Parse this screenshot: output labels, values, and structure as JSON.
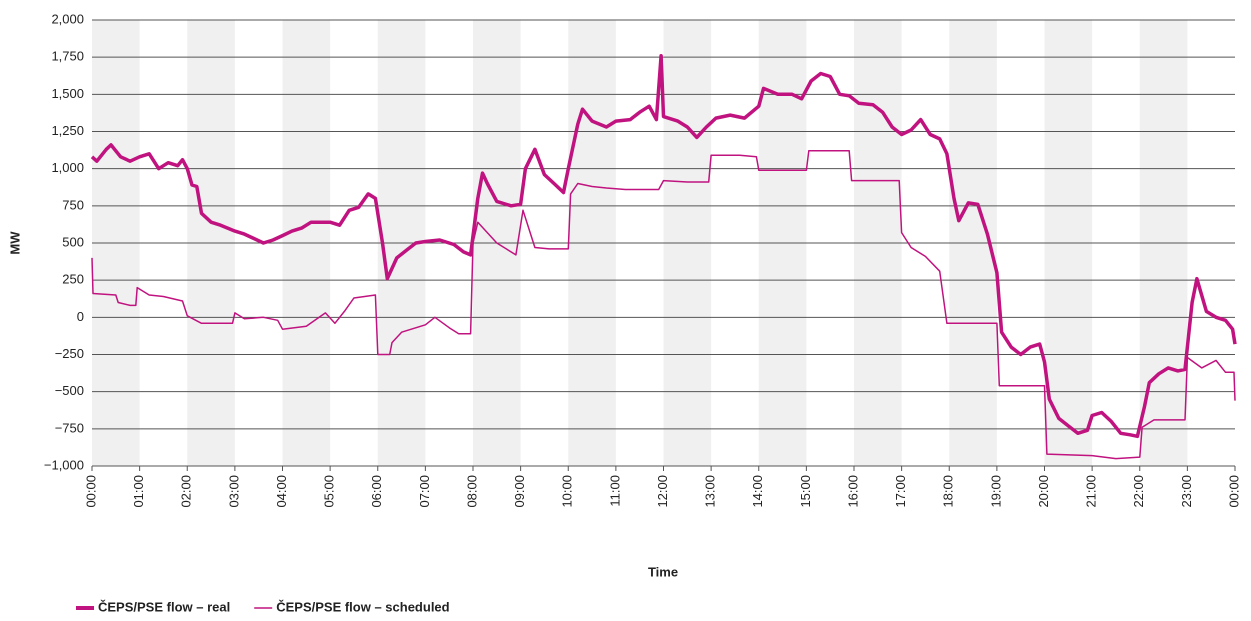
{
  "chart_data": {
    "type": "line",
    "ylabel": "MW",
    "xlabel": "Time",
    "xlim": [
      0,
      24
    ],
    "ylim": [
      -1000,
      2000
    ],
    "grid": true,
    "legend": "bottom-left",
    "yticks": [
      {
        "value": -1000,
        "label": "−1,000"
      },
      {
        "value": -750,
        "label": "−750"
      },
      {
        "value": -500,
        "label": "−500"
      },
      {
        "value": -250,
        "label": "−250"
      },
      0,
      250,
      500,
      750,
      {
        "value": 1000,
        "label": "1,000"
      },
      {
        "value": 1250,
        "label": "1,250"
      },
      {
        "value": 1500,
        "label": "1,500"
      },
      {
        "value": 1750,
        "label": "1,750"
      },
      {
        "value": 2000,
        "label": "2,000"
      }
    ],
    "xticks": [
      {
        "value": 0,
        "label": "00:00"
      },
      {
        "value": 1,
        "label": "01:00"
      },
      {
        "value": 2,
        "label": "02:00"
      },
      {
        "value": 3,
        "label": "03:00"
      },
      {
        "value": 4,
        "label": "04:00"
      },
      {
        "value": 5,
        "label": "05:00"
      },
      {
        "value": 6,
        "label": "06:00"
      },
      {
        "value": 7,
        "label": "07:00"
      },
      {
        "value": 8,
        "label": "08:00"
      },
      {
        "value": 9,
        "label": "09:00"
      },
      {
        "value": 10,
        "label": "10:00"
      },
      {
        "value": 11,
        "label": "11:00"
      },
      {
        "value": 12,
        "label": "12:00"
      },
      {
        "value": 13,
        "label": "13:00"
      },
      {
        "value": 14,
        "label": "14:00"
      },
      {
        "value": 15,
        "label": "15:00"
      },
      {
        "value": 16,
        "label": "16:00"
      },
      {
        "value": 17,
        "label": "17:00"
      },
      {
        "value": 18,
        "label": "18:00"
      },
      {
        "value": 19,
        "label": "19:00"
      },
      {
        "value": 20,
        "label": "20:00"
      },
      {
        "value": 21,
        "label": "21:00"
      },
      {
        "value": 22,
        "label": "22:00"
      },
      {
        "value": 23,
        "label": "23:00"
      },
      {
        "value": 24,
        "label": "00:00"
      }
    ],
    "series": [
      {
        "name": "ČEPS/PSE flow – real",
        "color": "#c0137f",
        "x": [
          0,
          0.1,
          0.3,
          0.4,
          0.6,
          0.8,
          1.0,
          1.2,
          1.4,
          1.6,
          1.8,
          1.9,
          2.0,
          2.1,
          2.2,
          2.3,
          2.5,
          2.7,
          3.0,
          3.2,
          3.4,
          3.6,
          3.8,
          4.0,
          4.2,
          4.4,
          4.6,
          4.8,
          5.0,
          5.2,
          5.4,
          5.6,
          5.8,
          5.95,
          6.1,
          6.2,
          6.4,
          6.6,
          6.8,
          7.0,
          7.3,
          7.6,
          7.8,
          7.95,
          8.1,
          8.2,
          8.3,
          8.5,
          8.8,
          9.0,
          9.1,
          9.3,
          9.5,
          9.7,
          9.9,
          10.0,
          10.2,
          10.3,
          10.5,
          10.8,
          11.0,
          11.3,
          11.5,
          11.7,
          11.85,
          11.95,
          12.0,
          12.3,
          12.5,
          12.7,
          12.9,
          13.1,
          13.4,
          13.7,
          14.0,
          14.1,
          14.4,
          14.7,
          14.9,
          15.1,
          15.3,
          15.5,
          15.7,
          15.9,
          16.1,
          16.4,
          16.6,
          16.8,
          17.0,
          17.2,
          17.4,
          17.6,
          17.8,
          17.95,
          18.1,
          18.2,
          18.4,
          18.6,
          18.8,
          19.0,
          19.1,
          19.3,
          19.5,
          19.7,
          19.9,
          20.0,
          20.1,
          20.3,
          20.5,
          20.7,
          20.9,
          21.0,
          21.2,
          21.4,
          21.6,
          21.8,
          21.95,
          22.1,
          22.2,
          22.4,
          22.6,
          22.8,
          22.95,
          23.1,
          23.2,
          23.4,
          23.6,
          23.8,
          23.95,
          24
        ],
        "values": [
          1080,
          1050,
          1130,
          1160,
          1080,
          1050,
          1080,
          1100,
          1000,
          1040,
          1020,
          1060,
          1000,
          890,
          880,
          700,
          640,
          620,
          580,
          560,
          530,
          500,
          520,
          550,
          580,
          600,
          640,
          640,
          640,
          620,
          720,
          740,
          830,
          800,
          500,
          260,
          400,
          450,
          500,
          510,
          520,
          490,
          440,
          420,
          800,
          970,
          900,
          780,
          750,
          760,
          1000,
          1130,
          960,
          900,
          840,
          1000,
          1300,
          1400,
          1320,
          1280,
          1320,
          1330,
          1380,
          1420,
          1330,
          1760,
          1350,
          1320,
          1280,
          1210,
          1280,
          1340,
          1360,
          1340,
          1420,
          1540,
          1500,
          1500,
          1470,
          1590,
          1640,
          1620,
          1500,
          1490,
          1440,
          1430,
          1380,
          1280,
          1230,
          1260,
          1330,
          1230,
          1200,
          1100,
          800,
          650,
          770,
          760,
          560,
          300,
          -100,
          -200,
          -250,
          -200,
          -180,
          -300,
          -550,
          -680,
          -730,
          -780,
          -760,
          -660,
          -640,
          -700,
          -780,
          -790,
          -800,
          -600,
          -440,
          -380,
          -340,
          -360,
          -350,
          100,
          260,
          40,
          0,
          -20,
          -80,
          -180
        ]
      },
      {
        "name": "ČEPS/PSE flow – scheduled",
        "color": "#c0137f",
        "x": [
          0,
          0.02,
          0.5,
          0.55,
          0.8,
          0.92,
          0.95,
          1.2,
          1.5,
          1.9,
          2.0,
          2.3,
          2.95,
          3.0,
          3.2,
          3.6,
          3.9,
          4.0,
          4.5,
          4.9,
          5.1,
          5.3,
          5.5,
          5.95,
          6.0,
          6.25,
          6.3,
          6.5,
          7.0,
          7.2,
          7.5,
          7.7,
          7.95,
          8.0,
          8.1,
          8.3,
          8.5,
          8.7,
          8.9,
          9.05,
          9.3,
          9.6,
          10.0,
          10.05,
          10.2,
          10.5,
          10.8,
          11.2,
          11.9,
          12.0,
          12.5,
          12.95,
          13.0,
          13.6,
          13.95,
          14.0,
          15.0,
          15.05,
          15.6,
          15.9,
          15.95,
          16.5,
          16.95,
          17.0,
          17.2,
          17.5,
          17.8,
          17.95,
          19.0,
          19.05,
          20.0,
          20.05,
          21.0,
          21.5,
          22.0,
          22.05,
          22.3,
          22.95,
          23.0,
          23.3,
          23.6,
          23.8,
          23.98,
          24
        ],
        "values": [
          400,
          160,
          150,
          100,
          80,
          80,
          200,
          150,
          140,
          110,
          10,
          -40,
          -40,
          30,
          -10,
          0,
          -20,
          -80,
          -60,
          30,
          -40,
          40,
          130,
          150,
          -250,
          -250,
          -170,
          -100,
          -50,
          0,
          -70,
          -110,
          -110,
          500,
          640,
          570,
          500,
          460,
          420,
          720,
          470,
          460,
          460,
          830,
          900,
          880,
          870,
          860,
          860,
          920,
          910,
          910,
          1090,
          1090,
          1080,
          990,
          990,
          1120,
          1120,
          1120,
          920,
          920,
          920,
          570,
          470,
          410,
          310,
          -40,
          -40,
          -460,
          -460,
          -920,
          -930,
          -950,
          -940,
          -740,
          -690,
          -690,
          -270,
          -340,
          -290,
          -370,
          -370,
          -560
        ]
      }
    ]
  }
}
